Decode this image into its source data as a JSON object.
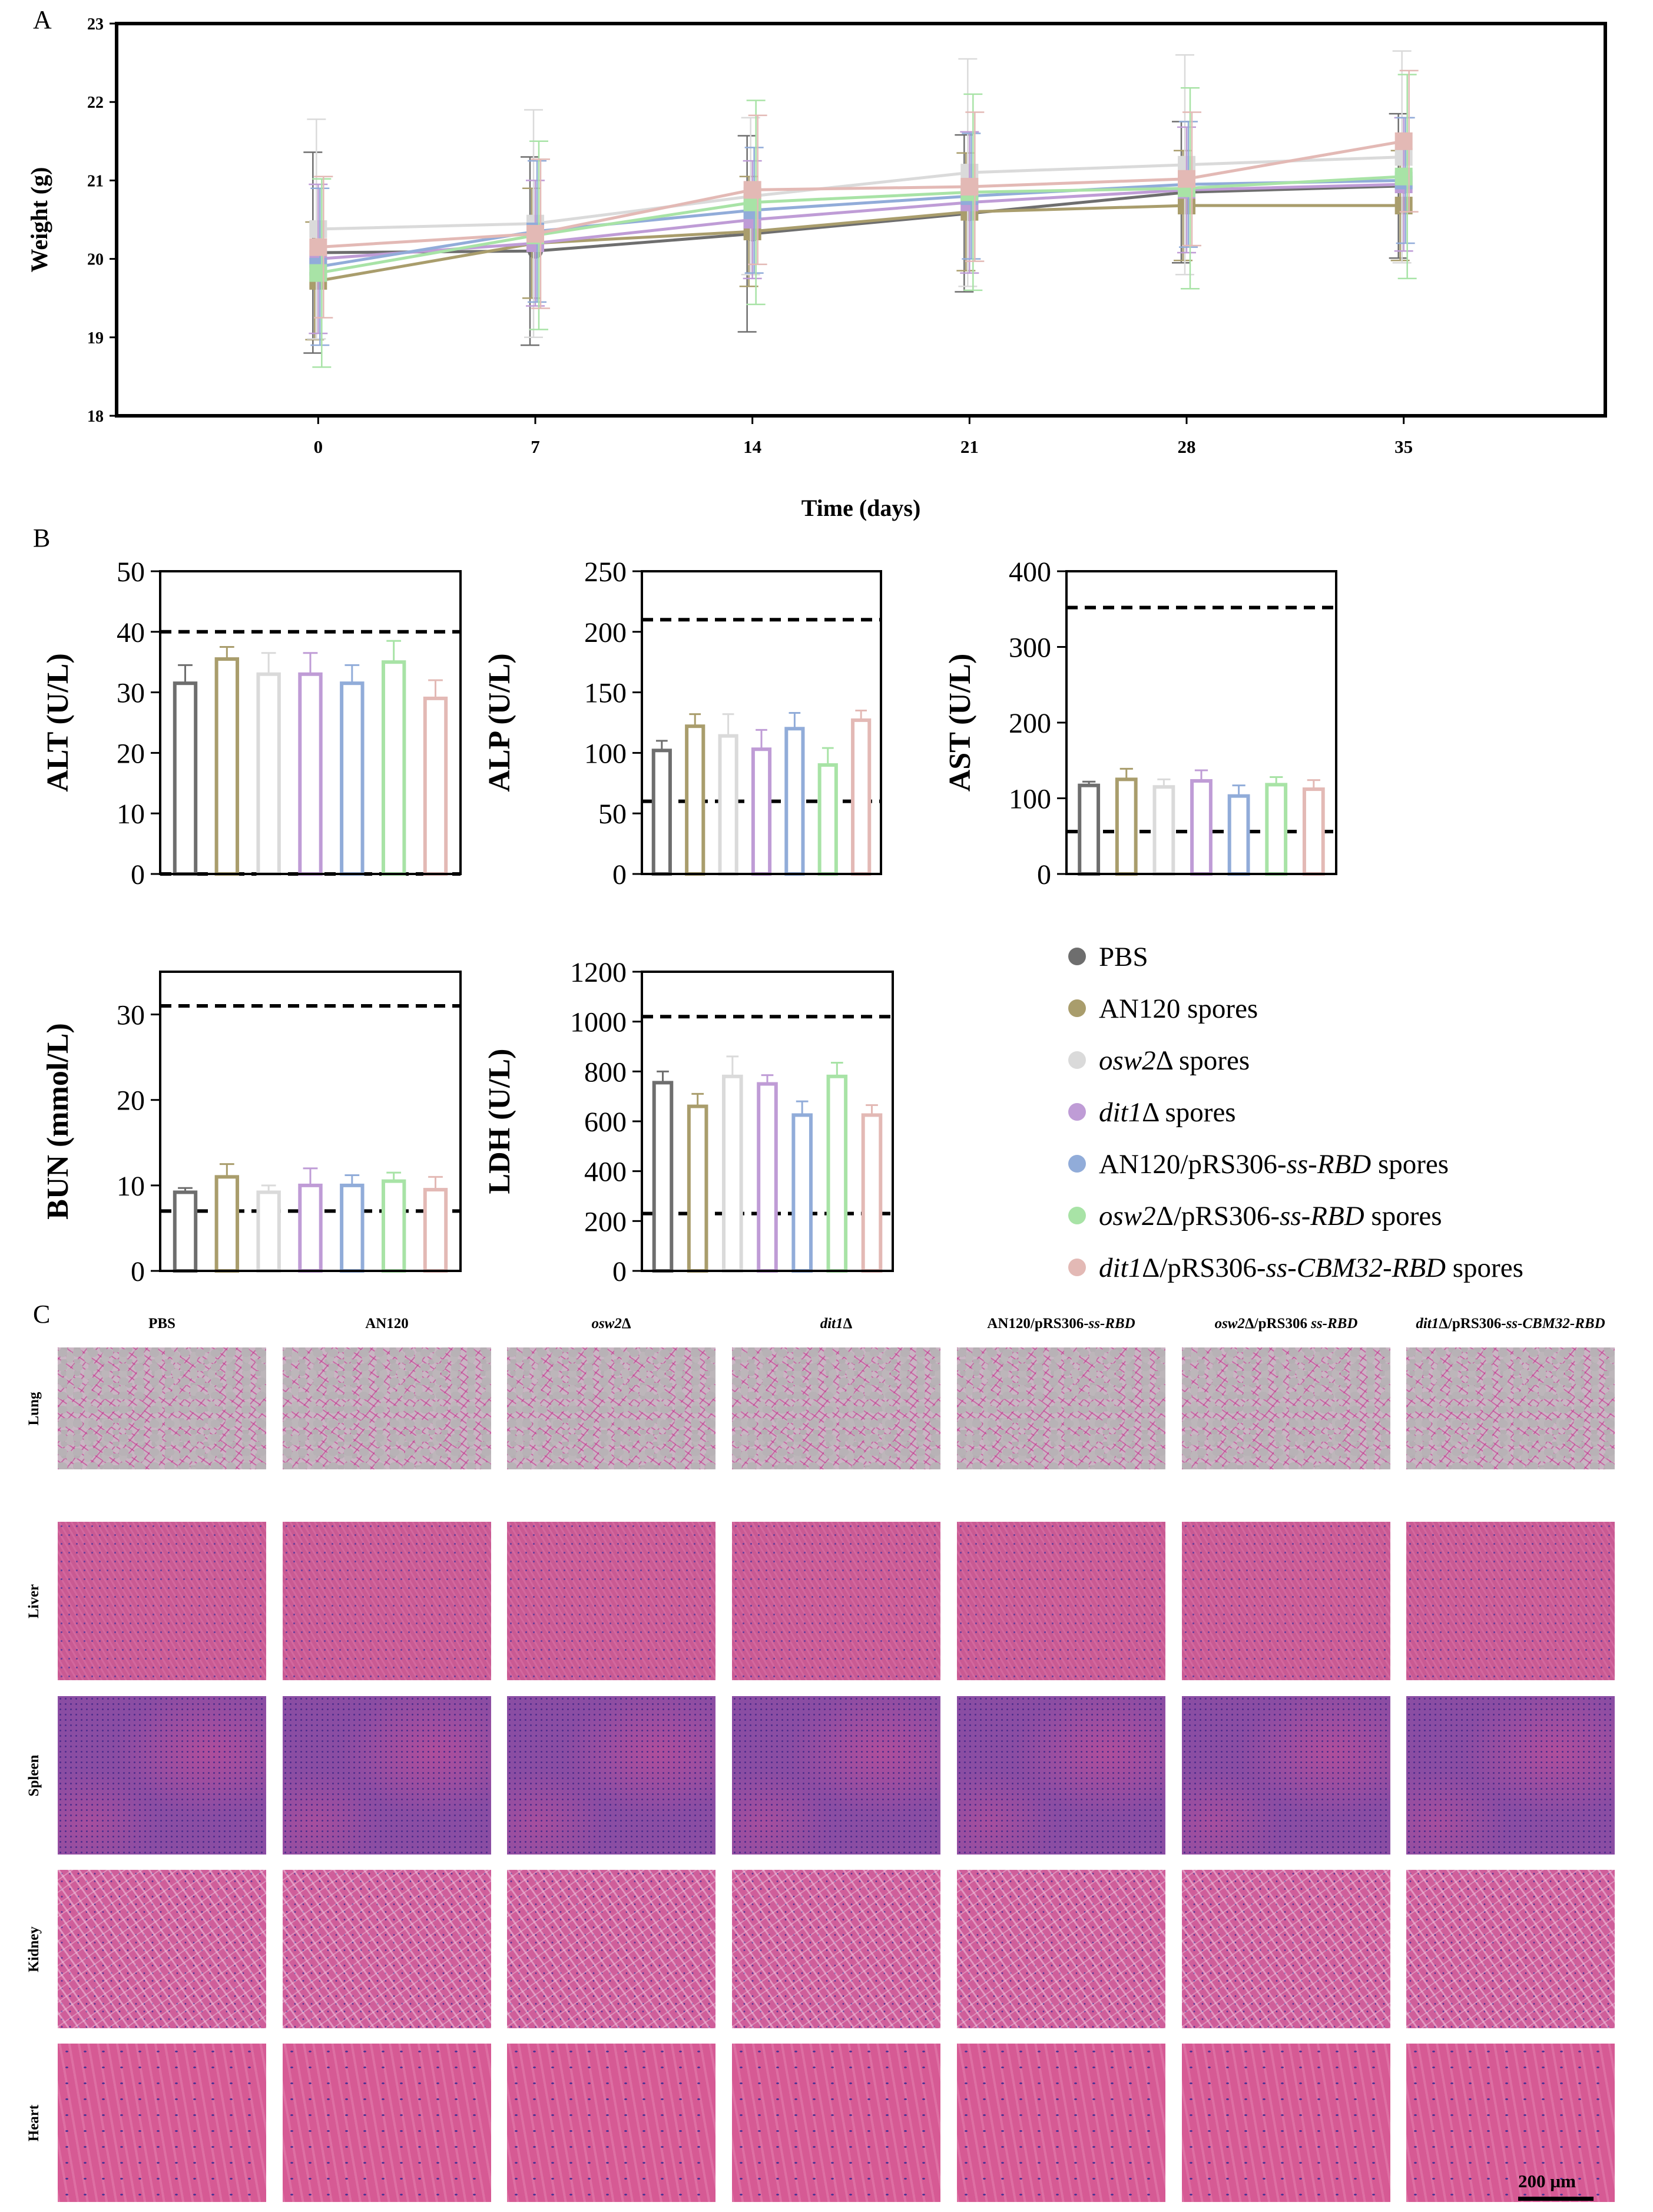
{
  "panel_labels": {
    "a": "A",
    "b": "B",
    "c": "C"
  },
  "series": [
    {
      "name": "PBS",
      "color": "#6e6e6e"
    },
    {
      "name": "AN120 spores",
      "color": "#a99d6c"
    },
    {
      "name": "osw2Δ spores",
      "color": "#dadada"
    },
    {
      "name": "dit1Δ spores",
      "color": "#bf9cd6"
    },
    {
      "name": "AN120/pRS306-ss-RBD spores",
      "color": "#91acd9"
    },
    {
      "name": "osw2Δ/pRS306-ss-RBD spores",
      "color": "#a8e3a6"
    },
    {
      "name": "dit1Δ/pRS306-ss-CBM32-RBD spores",
      "color": "#e3b9b5"
    }
  ],
  "legend_parts": [
    [
      {
        "t": "PBS",
        "i": false
      }
    ],
    [
      {
        "t": "AN120 spores",
        "i": false
      }
    ],
    [
      {
        "t": "osw2",
        "i": true
      },
      {
        "t": "Δ spores",
        "i": false
      }
    ],
    [
      {
        "t": "dit1",
        "i": true
      },
      {
        "t": "Δ spores",
        "i": false
      }
    ],
    [
      {
        "t": "AN120/pRS306-",
        "i": false
      },
      {
        "t": "ss-RBD",
        "i": true
      },
      {
        "t": " spores",
        "i": false
      }
    ],
    [
      {
        "t": "osw2",
        "i": true
      },
      {
        "t": "Δ/pRS306-",
        "i": false
      },
      {
        "t": "ss-RBD",
        "i": true
      },
      {
        "t": " spores",
        "i": false
      }
    ],
    [
      {
        "t": "dit1",
        "i": true
      },
      {
        "t": "Δ/pRS306-",
        "i": false
      },
      {
        "t": "ss-CBM32-RBD",
        "i": true
      },
      {
        "t": " spores",
        "i": false
      }
    ]
  ],
  "chart_data": [
    {
      "id": "weight",
      "type": "line",
      "xlabel": "Time (days)",
      "ylabel": "Weight (g)",
      "x": [
        0,
        7,
        14,
        21,
        28,
        35
      ],
      "xlim": [
        -6.5,
        41.5
      ],
      "ylim": [
        18,
        23
      ],
      "yticks": [
        18,
        19,
        20,
        21,
        22,
        23
      ],
      "series": [
        {
          "name": "PBS",
          "values": [
            20.08,
            20.1,
            20.32,
            20.58,
            20.85,
            20.93
          ],
          "errors": [
            1.28,
            1.2,
            1.25,
            1.0,
            0.9,
            0.92
          ]
        },
        {
          "name": "AN120 spores",
          "values": [
            19.72,
            20.2,
            20.35,
            20.6,
            20.68,
            20.68
          ],
          "errors": [
            0.75,
            0.7,
            0.7,
            0.75,
            0.7,
            0.7
          ]
        },
        {
          "name": "osw2Δ spores",
          "values": [
            20.38,
            20.45,
            20.8,
            21.1,
            21.2,
            21.3
          ],
          "errors": [
            1.4,
            1.45,
            1.0,
            1.45,
            1.4,
            1.35
          ]
        },
        {
          "name": "dit1Δ spores",
          "values": [
            20.0,
            20.2,
            20.5,
            20.72,
            20.88,
            20.95
          ],
          "errors": [
            0.95,
            0.8,
            0.75,
            0.9,
            0.8,
            0.85
          ]
        },
        {
          "name": "AN120/pRS306-ss-RBD spores",
          "values": [
            19.9,
            20.35,
            20.62,
            20.8,
            20.95,
            21.0
          ],
          "errors": [
            1.0,
            0.9,
            0.8,
            0.8,
            0.8,
            0.8
          ]
        },
        {
          "name": "osw2Δ/pRS306-ss-RBD spores",
          "values": [
            19.82,
            20.3,
            20.72,
            20.85,
            20.9,
            21.05
          ],
          "errors": [
            1.2,
            1.2,
            1.3,
            1.25,
            1.28,
            1.3
          ]
        },
        {
          "name": "dit1Δ/pRS306-ss-CBM32-RBD spores",
          "values": [
            20.15,
            20.32,
            20.88,
            20.92,
            21.02,
            21.5
          ],
          "errors": [
            0.9,
            0.95,
            0.95,
            0.95,
            0.85,
            0.9
          ]
        }
      ]
    },
    {
      "id": "alt",
      "type": "bar",
      "ylabel": "ALT (U/L)",
      "ylim": [
        0,
        50
      ],
      "yticks": [
        0,
        10,
        20,
        30,
        40,
        50
      ],
      "ref_lines": [
        40,
        0
      ],
      "values": [
        31.5,
        35.5,
        33,
        33,
        31.5,
        35,
        29
      ],
      "errors": [
        3,
        2,
        3.5,
        3.5,
        3,
        3.5,
        3
      ]
    },
    {
      "id": "alp",
      "type": "bar",
      "ylabel": "ALP (U/L)",
      "ylim": [
        0,
        250
      ],
      "yticks": [
        0,
        50,
        100,
        150,
        200,
        250
      ],
      "ref_lines": [
        210,
        60
      ],
      "values": [
        102,
        122,
        114,
        103,
        120,
        90,
        127
      ],
      "errors": [
        8,
        10,
        18,
        16,
        13,
        14,
        8
      ]
    },
    {
      "id": "ast",
      "type": "bar",
      "ylabel": "AST (U/L)",
      "ylim": [
        0,
        400
      ],
      "yticks": [
        0,
        100,
        200,
        300,
        400
      ],
      "ref_lines": [
        352,
        56
      ],
      "values": [
        117,
        125,
        115,
        123,
        103,
        118,
        112
      ],
      "errors": [
        5,
        14,
        10,
        14,
        14,
        10,
        12
      ]
    },
    {
      "id": "bun",
      "type": "bar",
      "ylabel": "BUN (mmol/L)",
      "ylim": [
        0,
        35
      ],
      "yticks": [
        0,
        10,
        20,
        30
      ],
      "ref_lines": [
        31,
        7
      ],
      "values": [
        9.2,
        11,
        9.2,
        10,
        10,
        10.5,
        9.5
      ],
      "errors": [
        0.5,
        1.5,
        0.8,
        2,
        1.2,
        1,
        1.5
      ]
    },
    {
      "id": "ldh",
      "type": "bar",
      "ylabel": "LDH (U/L)",
      "ylim": [
        0,
        1200
      ],
      "yticks": [
        0,
        200,
        400,
        600,
        800,
        1000,
        1200
      ],
      "ref_lines": [
        1020,
        230
      ],
      "values": [
        755,
        660,
        780,
        750,
        625,
        780,
        625
      ],
      "errors": [
        45,
        50,
        80,
        35,
        55,
        55,
        40
      ]
    }
  ],
  "histology": {
    "columns": [
      [
        {
          "t": "PBS",
          "i": false
        }
      ],
      [
        {
          "t": "AN120",
          "i": false
        }
      ],
      [
        {
          "t": "osw2",
          "i": true
        },
        {
          "t": "Δ",
          "i": false
        }
      ],
      [
        {
          "t": "dit1",
          "i": true
        },
        {
          "t": "Δ",
          "i": false
        }
      ],
      [
        {
          "t": "AN120/pRS306-",
          "i": false
        },
        {
          "t": "ss-RBD",
          "i": true
        }
      ],
      [
        {
          "t": "osw2",
          "i": true
        },
        {
          "t": "Δ/pRS306 ",
          "i": false
        },
        {
          "t": "ss-RBD",
          "i": true
        }
      ],
      [
        {
          "t": "dit1",
          "i": true
        },
        {
          "t": "Δ/pRS306-",
          "i": false
        },
        {
          "t": "ss-CBM32-RBD",
          "i": true
        }
      ]
    ],
    "rows": [
      "Lung",
      "Liver",
      "Spleen",
      "Kidney",
      "Heart"
    ],
    "scale_bar": "200 µm"
  }
}
